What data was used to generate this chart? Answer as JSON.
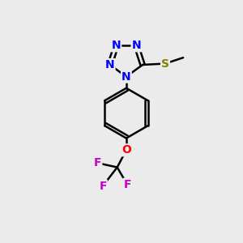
{
  "background_color": "#ebebeb",
  "bond_color": "#000000",
  "N_color": "#0000ff",
  "S_color": "#808000",
  "O_color": "#ff0000",
  "F_color": "#cc00cc",
  "line_width": 1.8,
  "font_size_atom": 10,
  "figsize": [
    3.0,
    3.0
  ],
  "dpi": 100,
  "xlim": [
    0,
    10
  ],
  "ylim": [
    0,
    10
  ]
}
